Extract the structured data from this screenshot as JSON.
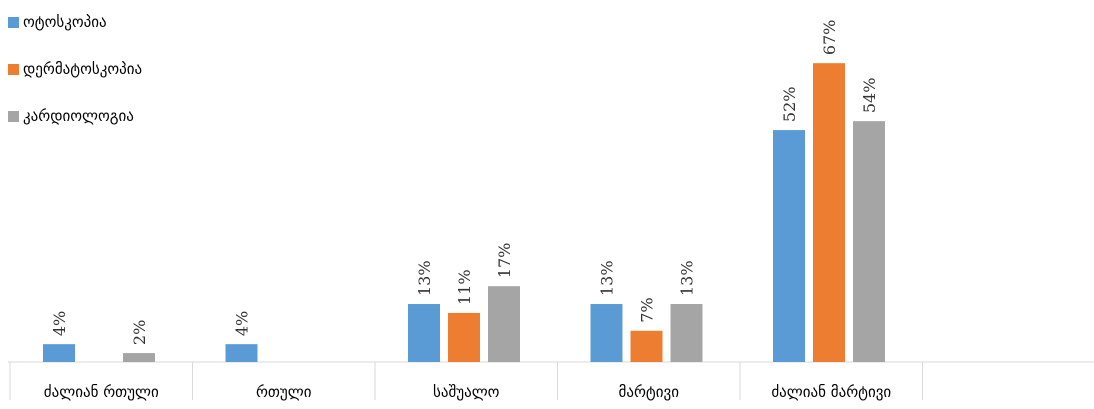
{
  "chart_data": {
    "type": "bar",
    "categories": [
      "ძალიან რთული",
      "რთული",
      "საშუალო",
      "მარტივი",
      "ძალიან მარტივი"
    ],
    "series": [
      {
        "name": "ოტოსკოპია",
        "color": "#5b9bd5",
        "values": [
          4,
          4,
          13,
          13,
          52
        ],
        "labels": [
          "4%",
          "4%",
          "13%",
          "13%",
          "52%"
        ]
      },
      {
        "name": "დერმატოსკოპია",
        "color": "#ed7d31",
        "values": [
          null,
          null,
          11,
          7,
          67
        ],
        "labels": [
          "",
          "",
          "11%",
          "7%",
          "67%"
        ]
      },
      {
        "name": "კარდიოლოგია",
        "color": "#a5a5a5",
        "values": [
          2,
          null,
          17,
          13,
          54
        ],
        "labels": [
          "2%",
          "",
          "17%",
          "13%",
          "54%"
        ]
      }
    ],
    "ylim": [
      0,
      70
    ],
    "grid": false,
    "legend_position": "top-left"
  }
}
